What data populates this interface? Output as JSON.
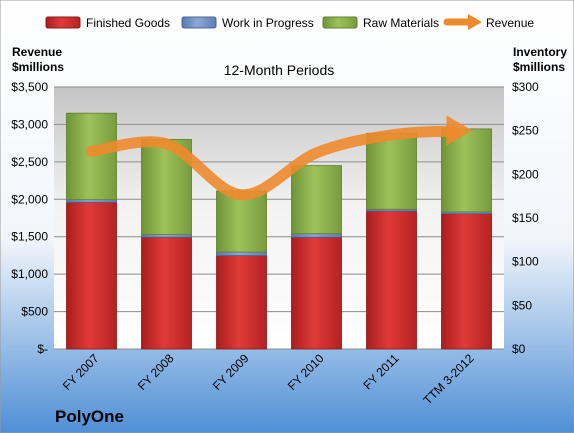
{
  "company": "PolyOne",
  "colors": {
    "finished_goods": "#d62b2b",
    "work_in_progress": "#6f8fc4",
    "raw_materials": "#8db04a",
    "revenue": "#ee8a2c",
    "background_top": "#ffffff",
    "background_bottom": "#4f8fd6"
  },
  "chart_data": {
    "type": "bar",
    "title": "12-Month Periods",
    "categories": [
      "FY 2007",
      "FY 2008",
      "FY 2009",
      "FY 2010",
      "FY 2011",
      "TTM 3-2012"
    ],
    "left_axis": {
      "label_line1": "Revenue",
      "label_line2": "$millions",
      "ylim": [
        0,
        3500
      ],
      "ticks": [
        "$-",
        "$500",
        "$1,000",
        "$1,500",
        "$2,000",
        "$2,500",
        "$3,000",
        "$3,500"
      ]
    },
    "right_axis": {
      "label_line1": "Inventory",
      "label_line2": "$millions",
      "ylim": [
        0,
        300
      ],
      "ticks": [
        "$0",
        "$50",
        "$100",
        "$150",
        "$200",
        "$250",
        "$300"
      ]
    },
    "grid": true,
    "legend_position": "top",
    "series": [
      {
        "name": "Finished Goods",
        "axis": "right",
        "stacked": true,
        "values": [
          168,
          128,
          107,
          128,
          158,
          155
        ]
      },
      {
        "name": "Work in Progress",
        "axis": "right",
        "stacked": true,
        "values": [
          3,
          3,
          4,
          4,
          2,
          2
        ]
      },
      {
        "name": "Raw Materials",
        "axis": "right",
        "stacked": true,
        "values": [
          99,
          109,
          70,
          78,
          87,
          95
        ]
      },
      {
        "name": "Revenue",
        "axis": "left",
        "type": "line",
        "values": [
          2640,
          2740,
          2060,
          2620,
          2860,
          2920
        ]
      }
    ]
  }
}
